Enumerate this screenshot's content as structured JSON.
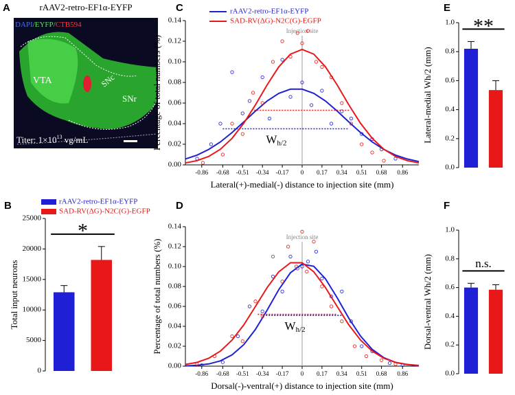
{
  "image_panel": {
    "panel": "A",
    "title": "rAAV2-retro-EF1α-EYFP",
    "stain": [
      "DAPI",
      "/EYFP/",
      "CTB594"
    ],
    "regions": [
      "VTA",
      "SNc",
      "SNr"
    ],
    "titer": [
      "Titer: 1×10",
      "13",
      " vg/mL"
    ]
  },
  "chart_data": [
    {
      "type": "bar",
      "panel": "B",
      "ylabel": "Total input neurons",
      "categories": [
        "rAAV2-retro-EF1α-EYFP",
        "SAD-RV(ΔG)-N2C(G)-EGFP"
      ],
      "legend": true,
      "values": [
        12900,
        18200
      ],
      "errors": [
        1100,
        2200
      ],
      "colors": [
        "#1f1fd6",
        "#e81818"
      ],
      "ylim": [
        0,
        25000
      ],
      "yticks": [
        0,
        5000,
        10000,
        15000,
        20000,
        25000
      ],
      "significance": "*"
    },
    {
      "type": "scatter_fit",
      "panel": "C",
      "legend": true,
      "xlabel": "Lateral(+)-medial(-) distance to injection site (mm)",
      "ylabel": "Percentage of total numbers (%)",
      "injection_site": {
        "label": "Injection site",
        "x": 0
      },
      "width_label": "W",
      "width_subscript": "h/2",
      "xlim": [
        -1.0,
        1.0
      ],
      "ylim": [
        0,
        0.14
      ],
      "xticks": [
        -0.86,
        -0.68,
        -0.51,
        -0.34,
        -0.17,
        0,
        0.17,
        0.34,
        0.51,
        0.68,
        0.86
      ],
      "yticks": [
        {
          "value": 0,
          "label": "0.00"
        },
        {
          "value": 0.02,
          "label": "0.02"
        },
        {
          "value": 0.04,
          "label": "0.04"
        },
        {
          "value": 0.06,
          "label": "0.06"
        },
        {
          "value": 0.08,
          "label": "0.08"
        },
        {
          "value": 0.1,
          "label": "0.10"
        },
        {
          "value": 0.12,
          "label": "0.12"
        },
        {
          "value": 0.14,
          "label": "0.14"
        }
      ],
      "fit_x": [
        -1.0,
        -0.9,
        -0.8,
        -0.7,
        -0.6,
        -0.5,
        -0.4,
        -0.3,
        -0.2,
        -0.1,
        0,
        0.1,
        0.2,
        0.3,
        0.4,
        0.5,
        0.6,
        0.7,
        0.8,
        0.9,
        1.0
      ],
      "series": [
        {
          "name": "rAAV2-retro-EF1α-EYFP",
          "color": "#1f1fd6",
          "x": [
            -0.9,
            -0.78,
            -0.7,
            -0.6,
            -0.51,
            -0.45,
            -0.34,
            -0.28,
            -0.17,
            -0.1,
            0,
            0.08,
            0.17,
            0.25,
            0.34,
            0.42,
            0.51,
            0.6,
            0.68,
            0.8
          ],
          "values": [
            0.006,
            0.02,
            0.04,
            0.09,
            0.05,
            0.062,
            0.085,
            0.045,
            0.102,
            0.066,
            0.08,
            0.058,
            0.072,
            0.04,
            0.052,
            0.045,
            0.03,
            0.025,
            0.015,
            0.006
          ],
          "fit_values": [
            0.0057,
            0.0095,
            0.015,
            0.0223,
            0.0314,
            0.0417,
            0.0523,
            0.062,
            0.0694,
            0.0735,
            0.0735,
            0.0694,
            0.062,
            0.0523,
            0.0417,
            0.0314,
            0.0223,
            0.015,
            0.0095,
            0.0057,
            0.0032
          ],
          "halfwidth": {
            "y": 0.035,
            "x": [
              -0.68,
              0.39
            ]
          }
        },
        {
          "name": "SAD-RV(ΔG)-N2C(G)-EGFP",
          "color": "#e81818",
          "x": [
            -0.85,
            -0.68,
            -0.6,
            -0.51,
            -0.42,
            -0.34,
            -0.25,
            -0.17,
            -0.1,
            -0.04,
            0,
            0.05,
            0.12,
            0.17,
            0.25,
            0.34,
            0.42,
            0.51,
            0.6,
            0.7
          ],
          "values": [
            0.002,
            0.01,
            0.04,
            0.03,
            0.07,
            0.06,
            0.1,
            0.12,
            0.105,
            0.128,
            0.118,
            0.13,
            0.1,
            0.095,
            0.085,
            0.06,
            0.04,
            0.02,
            0.012,
            0.004
          ],
          "fit_values": [
            0.0019,
            0.0041,
            0.0082,
            0.0152,
            0.0258,
            0.0404,
            0.0583,
            0.0776,
            0.0951,
            0.1075,
            0.112,
            0.1075,
            0.0951,
            0.0776,
            0.0583,
            0.0404,
            0.0258,
            0.0152,
            0.0082,
            0.0041,
            0.0019
          ],
          "halfwidth": {
            "y": 0.053,
            "x": [
              -0.41,
              0.41
            ]
          }
        }
      ]
    },
    {
      "type": "scatter_fit",
      "panel": "D",
      "legend": false,
      "xlabel": "Dorsal(-)-ventral(+) distance to injection site (mm)",
      "ylabel": "Percentage of total numbers (%)",
      "injection_site": {
        "label": "Injection site",
        "x": 0
      },
      "width_label": "W",
      "width_subscript": "h/2",
      "xlim": [
        -1.0,
        1.0
      ],
      "ylim": [
        0,
        0.14
      ],
      "xticks": [
        -0.86,
        -0.68,
        -0.51,
        -0.34,
        -0.17,
        0,
        0.17,
        0.34,
        0.51,
        0.68,
        0.86
      ],
      "yticks": [
        {
          "value": 0,
          "label": "0.00"
        },
        {
          "value": 0.02,
          "label": "0.02"
        },
        {
          "value": 0.04,
          "label": "0.04"
        },
        {
          "value": 0.06,
          "label": "0.06"
        },
        {
          "value": 0.08,
          "label": "0.08"
        },
        {
          "value": 0.1,
          "label": "0.10"
        },
        {
          "value": 0.12,
          "label": "0.12"
        },
        {
          "value": 0.14,
          "label": "0.14"
        }
      ],
      "fit_x": [
        -1.0,
        -0.9,
        -0.8,
        -0.7,
        -0.6,
        -0.5,
        -0.4,
        -0.3,
        -0.2,
        -0.1,
        0,
        0.1,
        0.2,
        0.3,
        0.4,
        0.5,
        0.6,
        0.7,
        0.8,
        0.9,
        1.0
      ],
      "series": [
        {
          "name": "rAAV2-retro-EF1α-EYFP",
          "color": "#1f1fd6",
          "x": [
            -0.86,
            -0.68,
            -0.55,
            -0.45,
            -0.34,
            -0.25,
            -0.17,
            -0.1,
            -0.04,
            0,
            0.05,
            0.12,
            0.17,
            0.25,
            0.34,
            0.42,
            0.51,
            0.6,
            0.75,
            0.86
          ],
          "values": [
            0.001,
            0.004,
            0.03,
            0.06,
            0.055,
            0.09,
            0.075,
            0.11,
            0.098,
            0.1,
            0.105,
            0.115,
            0.088,
            0.07,
            0.075,
            0.045,
            0.02,
            0.015,
            0.003,
            0.001
          ],
          "fit_values": [
            0.0003,
            0.0008,
            0.0022,
            0.0053,
            0.0114,
            0.0216,
            0.0369,
            0.0562,
            0.0768,
            0.0938,
            0.1025,
            0.1002,
            0.0877,
            0.0687,
            0.0481,
            0.0302,
            0.0169,
            0.0085,
            0.0038,
            0.0015,
            0.0006
          ],
          "halfwidth": {
            "y": 0.051,
            "x": [
              -0.31,
              0.34
            ]
          }
        },
        {
          "name": "SAD-RV(ΔG)-N2C(G)-EGFP",
          "color": "#e81818",
          "x": [
            -0.9,
            -0.75,
            -0.6,
            -0.51,
            -0.4,
            -0.34,
            -0.25,
            -0.17,
            -0.12,
            -0.05,
            0,
            0.04,
            0.1,
            0.17,
            0.25,
            0.34,
            0.45,
            0.55,
            0.68,
            0.8
          ],
          "values": [
            0.002,
            0.01,
            0.03,
            0.025,
            0.065,
            0.05,
            0.11,
            0.085,
            0.12,
            0.1,
            0.135,
            0.095,
            0.125,
            0.08,
            0.06,
            0.045,
            0.02,
            0.01,
            0.006,
            0.002
          ],
          "fit_values": [
            0.0017,
            0.0038,
            0.0079,
            0.0151,
            0.0262,
            0.0414,
            0.0599,
            0.0788,
            0.0947,
            0.1038,
            0.1038,
            0.0947,
            0.0788,
            0.0599,
            0.0414,
            0.0262,
            0.0151,
            0.0079,
            0.0038,
            0.0017,
            0.0007
          ],
          "halfwidth": {
            "y": 0.052,
            "x": [
              -0.38,
              0.3
            ]
          }
        }
      ]
    },
    {
      "type": "bar",
      "panel": "E",
      "ylabel": "Lateral-medial Wh/2 (mm)",
      "categories": [
        null,
        null
      ],
      "legend": false,
      "values": [
        0.82,
        0.535
      ],
      "errors": [
        0.05,
        0.065
      ],
      "colors": [
        "#1f1fd6",
        "#e81818"
      ],
      "ylim": [
        0,
        1.0
      ],
      "yticks": [
        {
          "value": 0,
          "label": "0.0"
        },
        {
          "value": 0.2,
          "label": "0.2"
        },
        {
          "value": 0.4,
          "label": "0.4"
        },
        {
          "value": 0.6,
          "label": "0.6"
        },
        {
          "value": 0.8,
          "label": "0.8"
        },
        {
          "value": 1.0,
          "label": "1.0"
        }
      ],
      "significance": "**"
    },
    {
      "type": "bar",
      "panel": "F",
      "ylabel": "Dorsal-ventral Wh/2 (mm)",
      "categories": [
        null,
        null
      ],
      "legend": false,
      "values": [
        0.6,
        0.585
      ],
      "errors": [
        0.03,
        0.035
      ],
      "colors": [
        "#1f1fd6",
        "#e81818"
      ],
      "ylim": [
        0,
        1.0
      ],
      "yticks": [
        {
          "value": 0,
          "label": "0.0"
        },
        {
          "value": 0.2,
          "label": "0.2"
        },
        {
          "value": 0.4,
          "label": "0.4"
        },
        {
          "value": 0.6,
          "label": "0.6"
        },
        {
          "value": 0.8,
          "label": "0.8"
        },
        {
          "value": 1.0,
          "label": "1.0"
        }
      ],
      "significance": "n.s."
    }
  ]
}
